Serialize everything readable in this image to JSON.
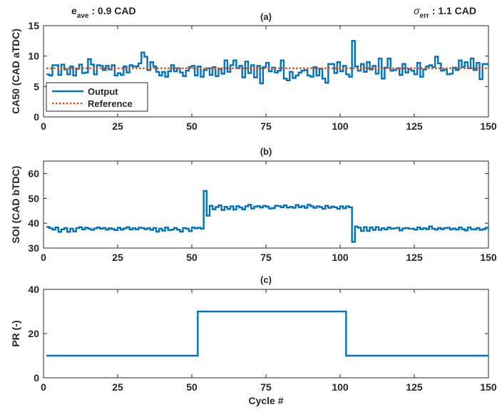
{
  "chart_data": [
    {
      "type": "line",
      "title": "(a)",
      "xlabel": "",
      "ylabel": "CA50 (CAD aTDC)",
      "xlim": [
        0,
        150
      ],
      "ylim": [
        0,
        15
      ],
      "xticks": [
        0,
        25,
        50,
        75,
        100,
        125,
        150
      ],
      "yticks": [
        0,
        5,
        10,
        15
      ],
      "legend": "bottom-left",
      "annotations": {
        "left": {
          "main": "e",
          "sub": "ave",
          "rest": " : 0.9 CAD"
        },
        "right": {
          "main": "σ",
          "sub": "err",
          "rest": " : 1.1 CAD"
        }
      },
      "series": [
        {
          "name": "Output",
          "style": "stairs",
          "color": "#0072BD",
          "x_start": 1,
          "values": [
            7.0,
            6.8,
            8.5,
            8.5,
            6.9,
            8.6,
            7.8,
            7.0,
            8.3,
            6.8,
            7.9,
            8.6,
            7.2,
            7.3,
            9.5,
            8.6,
            7.0,
            8.5,
            8.4,
            7.7,
            8.4,
            7.8,
            8.5,
            6.8,
            7.2,
            6.9,
            8.3,
            7.3,
            8.5,
            8.3,
            8.3,
            8.8,
            10.6,
            9.9,
            7.7,
            9.0,
            8.3,
            7.4,
            6.8,
            7.4,
            6.6,
            7.5,
            8.5,
            7.5,
            8.0,
            7.3,
            6.7,
            7.6,
            8.2,
            8.4,
            6.8,
            8.3,
            6.6,
            7.7,
            8.0,
            6.9,
            8.2,
            6.7,
            7.9,
            7.1,
            9.3,
            7.4,
            8.5,
            9.3,
            8.0,
            8.4,
            6.5,
            9.1,
            7.2,
            8.5,
            6.5,
            8.4,
            5.5,
            8.2,
            8.9,
            7.5,
            8.1,
            7.3,
            7.6,
            9.3,
            6.3,
            6.0,
            7.4,
            6.4,
            6.8,
            7.3,
            7.6,
            7.7,
            6.8,
            6.6,
            8.2,
            6.8,
            7.9,
            6.3,
            5.6,
            8.7,
            8.7,
            7.2,
            9.0,
            7.5,
            8.4,
            7.0,
            6.6,
            12.5,
            8.3,
            7.6,
            8.7,
            7.4,
            9.0,
            7.8,
            8.4,
            7.1,
            9.6,
            6.3,
            8.1,
            9.6,
            7.6,
            7.7,
            8.0,
            6.9,
            8.7,
            7.3,
            7.9,
            7.6,
            7.0,
            8.9,
            6.6,
            7.8,
            8.3,
            8.5,
            8.2,
            9.9,
            8.8,
            7.6,
            7.8,
            7.0,
            7.1,
            8.1,
            7.7,
            9.3,
            8.2,
            9.0,
            8.0,
            9.6,
            7.7,
            8.9,
            6.2,
            8.7,
            8.7,
            8.5,
            9.8
          ]
        },
        {
          "name": "Reference",
          "style": "dotted",
          "color": "#D95319",
          "x": [
            1,
            150
          ],
          "values": [
            8,
            8
          ]
        }
      ]
    },
    {
      "type": "line",
      "title": "(b)",
      "xlabel": "",
      "ylabel": "SOI (CAD bTDC)",
      "xlim": [
        0,
        150
      ],
      "ylim": [
        30,
        65
      ],
      "xticks": [
        0,
        25,
        50,
        75,
        100,
        125,
        150
      ],
      "yticks": [
        30,
        40,
        50,
        60
      ],
      "series": [
        {
          "style": "stairs",
          "color": "#0072BD",
          "x_start": 1,
          "values": [
            38.5,
            38.0,
            37.4,
            38.3,
            36.5,
            37.5,
            38.1,
            36.5,
            37.8,
            36.7,
            38.0,
            38.4,
            37.5,
            38.2,
            37.8,
            37.3,
            37.9,
            38.3,
            37.8,
            38.1,
            37.4,
            38.0,
            37.6,
            37.2,
            38.2,
            37.4,
            37.9,
            38.4,
            37.5,
            38.0,
            37.5,
            38.2,
            38.1,
            37.6,
            38.0,
            37.3,
            38.1,
            36.6,
            37.8,
            37.0,
            38.3,
            37.2,
            37.4,
            38.1,
            37.4,
            36.6,
            38.1,
            37.8,
            36.8,
            38.3,
            37.9,
            38.2,
            37.8,
            53.0,
            43.0,
            47.0,
            45.6,
            46.5,
            47.2,
            45.3,
            46.6,
            45.7,
            46.8,
            45.5,
            46.9,
            46.3,
            45.6,
            46.8,
            47.4,
            45.9,
            46.7,
            46.9,
            46.3,
            47.0,
            46.7,
            45.9,
            46.1,
            47.0,
            46.9,
            46.4,
            47.2,
            46.3,
            46.6,
            46.2,
            47.3,
            46.4,
            46.9,
            46.2,
            47.4,
            46.8,
            46.2,
            46.8,
            46.5,
            45.8,
            47.0,
            46.2,
            46.7,
            46.4,
            45.8,
            46.8,
            46.0,
            46.8,
            46.4,
            32.5,
            38.7,
            38.2,
            36.9,
            38.4,
            36.9,
            38.3,
            37.3,
            38.4,
            37.3,
            38.0,
            37.5,
            38.3,
            37.8,
            37.9,
            38.2,
            37.1,
            37.9,
            38.1,
            37.8,
            37.8,
            37.4,
            38.3,
            37.6,
            38.0,
            37.6,
            38.7,
            37.8,
            37.4,
            38.1,
            37.6,
            38.0,
            38.2,
            37.5,
            37.9,
            37.4,
            38.3,
            37.6,
            37.1,
            38.3,
            37.6,
            37.5,
            38.1,
            37.3,
            37.6,
            38.2,
            37.7,
            37.9,
            37.5,
            37.6,
            37.4
          ]
        }
      ]
    },
    {
      "type": "line",
      "title": "(c)",
      "xlabel": "Cycle #",
      "ylabel": "PR (-)",
      "xlim": [
        0,
        150
      ],
      "ylim": [
        0,
        40
      ],
      "xticks": [
        0,
        25,
        50,
        75,
        100,
        125,
        150
      ],
      "yticks": [
        0,
        20,
        40
      ],
      "series": [
        {
          "style": "line",
          "color": "#0072BD",
          "x": [
            1,
            52,
            52,
            102,
            102,
            150
          ],
          "values": [
            10,
            10,
            30,
            30,
            10,
            10
          ]
        }
      ]
    }
  ]
}
